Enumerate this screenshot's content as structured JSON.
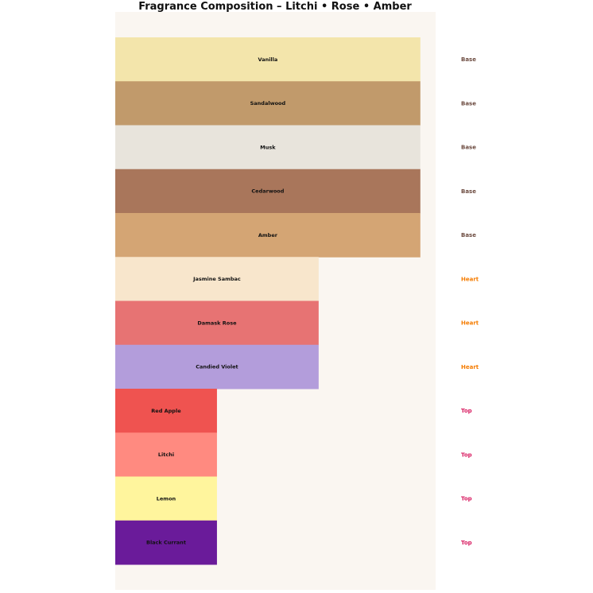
{
  "chart_data": {
    "type": "bar",
    "orientation": "horizontal",
    "title": "Fragrance Composition – Litchi • Rose • Amber",
    "xlabel": "",
    "ylabel": "",
    "grid": false,
    "legend": "none",
    "background_color": "#faf6f1",
    "xlim": [
      0,
      3.15
    ],
    "items": [
      {
        "name": "Vanilla",
        "value": 3,
        "tier": "Base",
        "color": "#f3e5ab"
      },
      {
        "name": "Sandalwood",
        "value": 3,
        "tier": "Base",
        "color": "#c19a6b"
      },
      {
        "name": "Musk",
        "value": 3,
        "tier": "Base",
        "color": "#e8e4dc"
      },
      {
        "name": "Cedarwood",
        "value": 3,
        "tier": "Base",
        "color": "#a9765b"
      },
      {
        "name": "Amber",
        "value": 3,
        "tier": "Base",
        "color": "#d4a574"
      },
      {
        "name": "Jasmine Sambac",
        "value": 2,
        "tier": "Heart",
        "color": "#f8e6cc"
      },
      {
        "name": "Damask Rose",
        "value": 2,
        "tier": "Heart",
        "color": "#e77373"
      },
      {
        "name": "Candied Violet",
        "value": 2,
        "tier": "Heart",
        "color": "#b39ddb"
      },
      {
        "name": "Red Apple",
        "value": 1,
        "tier": "Top",
        "color": "#ef5350"
      },
      {
        "name": "Litchi",
        "value": 1,
        "tier": "Top",
        "color": "#ff8a80"
      },
      {
        "name": "Lemon",
        "value": 1,
        "tier": "Top",
        "color": "#fff59d"
      },
      {
        "name": "Black Currant",
        "value": 1,
        "tier": "Top",
        "color": "#6a1b9a"
      }
    ],
    "tier_colors": {
      "Base": "#6d4c41",
      "Heart": "#f57c00",
      "Top": "#d81b60"
    }
  }
}
